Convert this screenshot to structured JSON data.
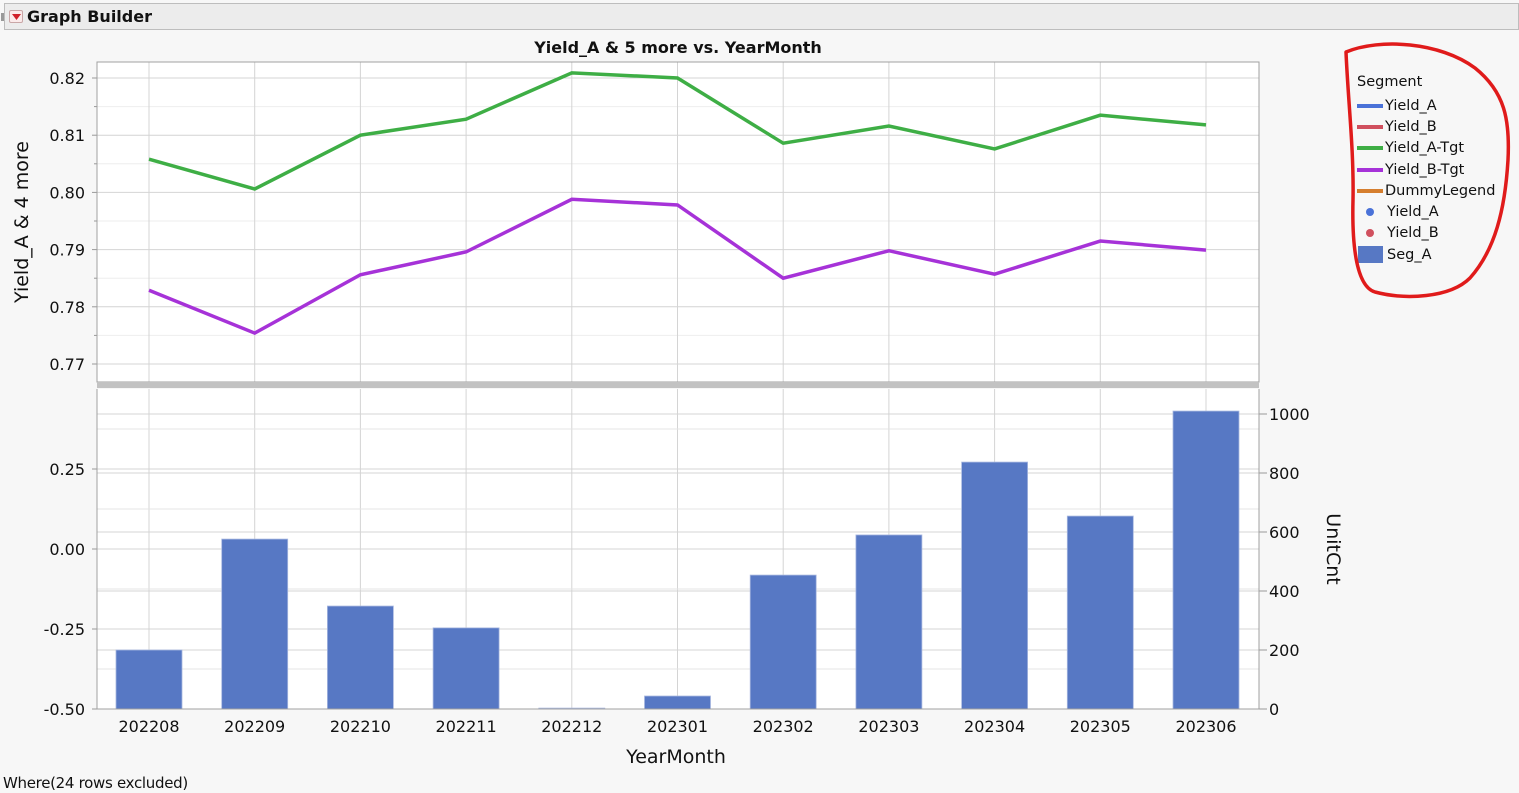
{
  "window": {
    "title": "Graph Builder",
    "menu_icon": "red-triangle-disclosure-icon"
  },
  "chart": {
    "title": "Yield_A & 5 more vs. YearMonth",
    "top_y_axis_title": "Yield_A & 4 more",
    "bottom_right_axis_title": "UnitCnt",
    "x_axis_title": "YearMonth",
    "top_y_ticks": [
      "0.82",
      "0.81",
      "0.80",
      "0.79",
      "0.78",
      "0.77"
    ],
    "bottom_left_ticks": [
      "0.25",
      "0.00",
      "-0.25",
      "-0.50"
    ],
    "bottom_right_ticks": [
      "1000",
      "800",
      "600",
      "400",
      "200",
      "0"
    ],
    "x_ticks": [
      "202208",
      "202209",
      "202210",
      "202211",
      "202212",
      "202301",
      "202302",
      "202303",
      "202304",
      "202305",
      "202306"
    ]
  },
  "legend": {
    "title": "Segment",
    "items": [
      {
        "label": "Yield_A",
        "type": "line",
        "color": "#4a72d8"
      },
      {
        "label": "Yield_B",
        "type": "line",
        "color": "#d0505e"
      },
      {
        "label": "Yield_A-Tgt",
        "type": "line",
        "color": "#3eae45"
      },
      {
        "label": "Yield_B-Tgt",
        "type": "line",
        "color": "#a632d8"
      },
      {
        "label": "DummyLegend",
        "type": "line",
        "color": "#d57e2e"
      },
      {
        "label": "Yield_A",
        "type": "dot",
        "color": "#4a72d8"
      },
      {
        "label": "Yield_B",
        "type": "dot",
        "color": "#d0505e"
      },
      {
        "label": "Seg_A",
        "type": "box",
        "color": "#5778c4"
      }
    ]
  },
  "footer": {
    "where_text": "Where(24 rows excluded)"
  },
  "colors": {
    "green_line": "#3eae45",
    "purple_line": "#a632d8",
    "bar_fill": "#5778c4",
    "annotation_circle": "#e01b1b"
  },
  "chart_data": [
    {
      "type": "line",
      "title": "Yield_A & 5 more vs. YearMonth",
      "xlabel": "YearMonth",
      "ylabel": "Yield_A & 4 more",
      "categories": [
        "202208",
        "202209",
        "202210",
        "202211",
        "202212",
        "202301",
        "202302",
        "202303",
        "202304",
        "202305",
        "202306"
      ],
      "ylim": [
        0.767,
        0.8225
      ],
      "yticks": [
        0.77,
        0.78,
        0.79,
        0.8,
        0.81,
        0.82
      ],
      "grid": true,
      "series": [
        {
          "name": "Yield_A-Tgt",
          "color": "#3eae45",
          "values": [
            0.8058,
            0.8006,
            0.81,
            0.8128,
            0.8209,
            0.82,
            0.8086,
            0.8116,
            0.8076,
            0.8135,
            0.8118
          ]
        },
        {
          "name": "Yield_B-Tgt",
          "color": "#a632d8",
          "values": [
            0.7829,
            0.7754,
            0.7856,
            0.7896,
            0.7988,
            0.7978,
            0.785,
            0.7898,
            0.7857,
            0.7915,
            0.7899
          ]
        }
      ]
    },
    {
      "type": "bar",
      "xlabel": "YearMonth",
      "ylabel_right": "UnitCnt",
      "categories": [
        "202208",
        "202209",
        "202210",
        "202211",
        "202212",
        "202301",
        "202302",
        "202303",
        "202304",
        "202305",
        "202306"
      ],
      "series": [
        {
          "name": "Seg_A",
          "color": "#5778c4",
          "values": [
            200,
            576,
            349,
            275,
            3,
            44,
            454,
            590,
            837,
            654,
            1010
          ]
        }
      ],
      "ylim_right": [
        0,
        1000
      ],
      "ylim_left": [
        -0.5,
        0.5
      ],
      "yticks_left": [
        -0.5,
        -0.25,
        0.0,
        0.25
      ],
      "yticks_right": [
        0,
        200,
        400,
        600,
        800,
        1000
      ],
      "grid": true,
      "legend_position": "right"
    }
  ]
}
